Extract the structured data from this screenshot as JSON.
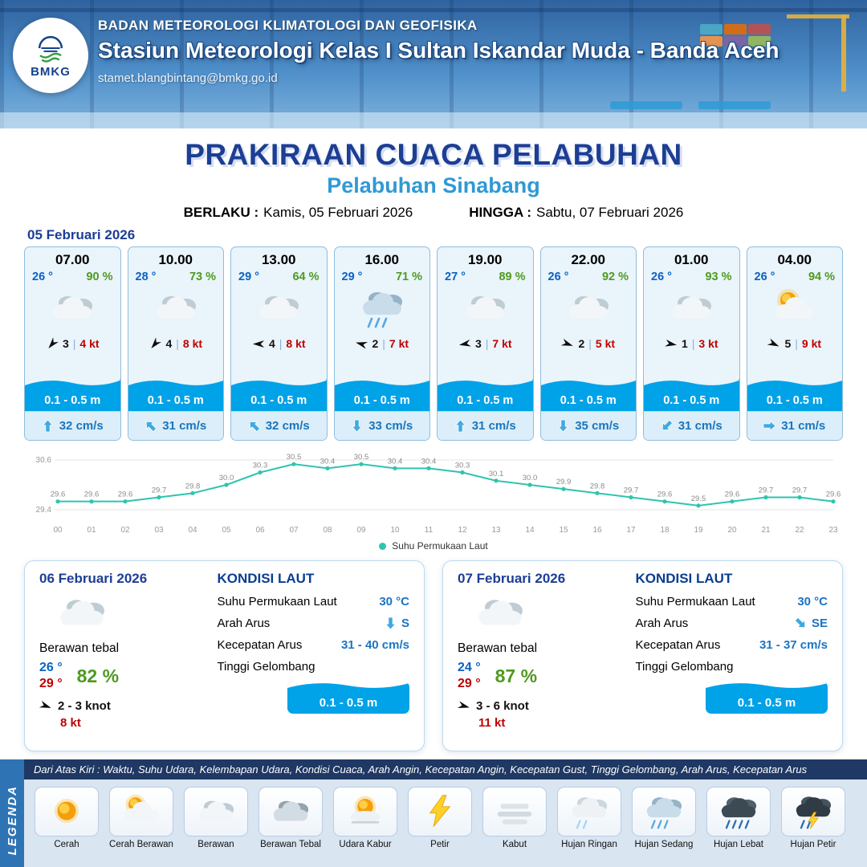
{
  "header": {
    "agency_line": "BADAN METEOROLOGI KLIMATOLOGI DAN GEOFISIKA",
    "station_line": "Stasiun Meteorologi Kelas I Sultan Iskandar Muda - Banda Aceh",
    "email": "stamet.blangbintang@bmkg.go.id",
    "logo_text": "BMKG"
  },
  "title": {
    "main": "PRAKIRAAN CUACA PELABUHAN",
    "sub": "Pelabuhan Sinabang",
    "berlaku_label": "BERLAKU :",
    "berlaku_value": "Kamis, 05 Februari 2026",
    "hingga_label": "HINGGA :",
    "hingga_value": "Sabtu, 07 Februari 2026"
  },
  "forecast_date_label": "05 Februari 2026",
  "hourly_cards": [
    {
      "time": "07.00",
      "temp": "26 °",
      "humidity": "90 %",
      "icon": "cloudy",
      "wind_dir_deg": 130,
      "wind_num": "3",
      "gust": "4 kt",
      "wave": "0.1 - 0.5 m",
      "current_dir_deg": 0,
      "current": "32 cm/s"
    },
    {
      "time": "10.00",
      "temp": "28 °",
      "humidity": "73 %",
      "icon": "cloudy",
      "wind_dir_deg": 130,
      "wind_num": "4",
      "gust": "8 kt",
      "wave": "0.1 - 0.5 m",
      "current_dir_deg": -45,
      "current": "31 cm/s"
    },
    {
      "time": "13.00",
      "temp": "29 °",
      "humidity": "64 %",
      "icon": "cloudy",
      "wind_dir_deg": 180,
      "wind_num": "4",
      "gust": "8 kt",
      "wave": "0.1 - 0.5 m",
      "current_dir_deg": -45,
      "current": "32 cm/s"
    },
    {
      "time": "16.00",
      "temp": "29 °",
      "humidity": "71 %",
      "icon": "rain-med",
      "wind_dir_deg": 195,
      "wind_num": "2",
      "gust": "7 kt",
      "wave": "0.1 - 0.5 m",
      "current_dir_deg": 180,
      "current": "33 cm/s"
    },
    {
      "time": "19.00",
      "temp": "27 °",
      "humidity": "89 %",
      "icon": "cloudy",
      "wind_dir_deg": 170,
      "wind_num": "3",
      "gust": "7 kt",
      "wave": "0.1 - 0.5 m",
      "current_dir_deg": 0,
      "current": "31 cm/s"
    },
    {
      "time": "22.00",
      "temp": "26 °",
      "humidity": "92 %",
      "icon": "cloudy",
      "wind_dir_deg": 20,
      "wind_num": "2",
      "gust": "5 kt",
      "wave": "0.1 - 0.5 m",
      "current_dir_deg": 180,
      "current": "35 cm/s"
    },
    {
      "time": "01.00",
      "temp": "26 °",
      "humidity": "93 %",
      "icon": "cloudy",
      "wind_dir_deg": 10,
      "wind_num": "1",
      "gust": "3 kt",
      "wave": "0.1 - 0.5 m",
      "current_dir_deg": 225,
      "current": "31 cm/s"
    },
    {
      "time": "04.00",
      "temp": "26 °",
      "humidity": "94 %",
      "icon": "sun-cloud",
      "wind_dir_deg": 25,
      "wind_num": "5",
      "gust": "9 kt",
      "wave": "0.1 - 0.5 m",
      "current_dir_deg": 90,
      "current": "31 cm/s"
    }
  ],
  "chart_data": {
    "type": "line",
    "series_name": "Suhu Permukaan Laut",
    "x": [
      "00",
      "01",
      "02",
      "03",
      "04",
      "05",
      "06",
      "07",
      "08",
      "09",
      "10",
      "11",
      "12",
      "13",
      "14",
      "15",
      "16",
      "17",
      "18",
      "19",
      "20",
      "21",
      "22",
      "23"
    ],
    "values": [
      29.6,
      29.6,
      29.6,
      29.7,
      29.8,
      30.0,
      30.3,
      30.5,
      30.4,
      30.5,
      30.4,
      30.4,
      30.3,
      30.1,
      30.0,
      29.9,
      29.8,
      29.7,
      29.6,
      29.5,
      29.6,
      29.7,
      29.7,
      29.6
    ],
    "ylim": [
      29.4,
      30.6
    ],
    "ytick_labels": [
      "30.6",
      "29.4"
    ],
    "line_color": "#2fc4ae",
    "grid": true,
    "legend_position": "bottom"
  },
  "daily_cards": [
    {
      "date": "06 Februari 2026",
      "icon": "cloudy",
      "desc": "Berawan tebal",
      "temp_min": "26 °",
      "temp_max": "29 °",
      "humidity": "82 %",
      "wind_dir_deg": 20,
      "wind_range": "2 - 3 knot",
      "gust": "8 kt",
      "sea": {
        "title": "KONDISI LAUT",
        "sst_label": "Suhu Permukaan Laut",
        "sst": "30 °C",
        "dir_label": "Arah Arus",
        "dir_deg": 180,
        "dir": "S",
        "speed_label": "Kecepatan Arus",
        "speed": "31 - 40 cm/s",
        "wave_label": "Tinggi Gelombang",
        "wave": "0.1 - 0.5 m"
      }
    },
    {
      "date": "07 Februari 2026",
      "icon": "cloudy",
      "desc": "Berawan tebal",
      "temp_min": "24 °",
      "temp_max": "29 °",
      "humidity": "87 %",
      "wind_dir_deg": 15,
      "wind_range": "3 - 6 knot",
      "gust": "11 kt",
      "sea": {
        "title": "KONDISI LAUT",
        "sst_label": "Suhu Permukaan Laut",
        "sst": "30 °C",
        "dir_label": "Arah Arus",
        "dir_deg": 135,
        "dir": "SE",
        "speed_label": "Kecepatan Arus",
        "speed": "31 - 37 cm/s",
        "wave_label": "Tinggi Gelombang",
        "wave": "0.1 - 0.5 m"
      }
    }
  ],
  "legend": {
    "title": "LEGENDA",
    "note": "Dari Atas Kiri : Waktu, Suhu Udara, Kelembapan Udara, Kondisi Cuaca, Arah Angin, Kecepatan Angin, Kecepatan Gust, Tinggi Gelombang, Arah Arus, Kecepatan Arus",
    "items": [
      {
        "label": "Cerah",
        "icon": "sun"
      },
      {
        "label": "Cerah Berawan",
        "icon": "sun-cloud"
      },
      {
        "label": "Berawan",
        "icon": "cloudy"
      },
      {
        "label": "Berawan Tebal",
        "icon": "cloud-thick"
      },
      {
        "label": "Udara Kabur",
        "icon": "haze"
      },
      {
        "label": "Petir",
        "icon": "thunder"
      },
      {
        "label": "Kabut",
        "icon": "fog"
      },
      {
        "label": "Hujan Ringan",
        "icon": "rain-light"
      },
      {
        "label": "Hujan Sedang",
        "icon": "rain-med"
      },
      {
        "label": "Hujan Lebat",
        "icon": "rain-heavy"
      },
      {
        "label": "Hujan Petir",
        "icon": "storm"
      }
    ]
  },
  "colors": {
    "navy": "#1c3e94",
    "light_blue": "#2f99d5",
    "wave_blue": "#00a2e8",
    "temp_blue": "#0a62c2",
    "humidity_green": "#4e9a1f",
    "gust_red": "#c00000",
    "chart_teal": "#2fc4ae"
  }
}
